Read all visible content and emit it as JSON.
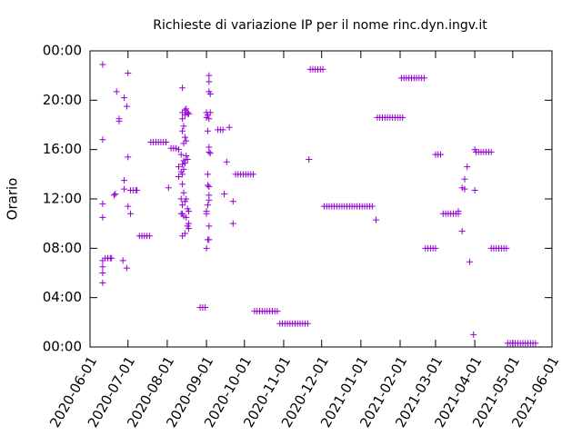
{
  "chart_data": {
    "type": "scatter",
    "title": "Richieste di variazione IP per il nome rinc.dyn.ingv.it",
    "y_label": "Orario",
    "color": "#9400d3",
    "xlim": [
      "2020-06-01",
      "2021-06-01"
    ],
    "xticks": [
      "2020-06-01",
      "2020-07-01",
      "2020-08-01",
      "2020-09-01",
      "2020-10-01",
      "2020-11-01",
      "2020-12-01",
      "2021-01-01",
      "2021-02-01",
      "2021-03-01",
      "2021-04-01",
      "2021-05-01",
      "2021-06-01"
    ],
    "ylim": [
      0,
      24
    ],
    "yticks": [
      {
        "value": 0,
        "label": "00:00"
      },
      {
        "value": 4,
        "label": "04:00"
      },
      {
        "value": 8,
        "label": "08:00"
      },
      {
        "value": 12,
        "label": "12:00"
      },
      {
        "value": 16,
        "label": "16:00"
      },
      {
        "value": 20,
        "label": "20:00"
      },
      {
        "value": 24,
        "label": "00:00"
      }
    ],
    "x": [
      "2020-06-11",
      "2020-06-11",
      "2020-06-11",
      "2020-06-11",
      "2020-06-11",
      "2020-06-11",
      "2020-06-11",
      "2020-06-11",
      "2020-06-13",
      "2020-06-15",
      "2020-06-17",
      "2020-06-18",
      "2020-06-20",
      "2020-06-21",
      "2020-06-22",
      "2020-06-24",
      "2020-06-24",
      "2020-06-27",
      "2020-06-28",
      "2020-06-28",
      "2020-06-28",
      "2020-06-30",
      "2020-06-30",
      "2020-07-01",
      "2020-07-01",
      "2020-07-01",
      "2020-07-03",
      "2020-07-03",
      "2020-07-05",
      "2020-07-07",
      "2020-07-08",
      "2020-07-10",
      "2020-07-12",
      "2020-07-14",
      "2020-07-16",
      "2020-07-18",
      "2020-07-19",
      "2020-07-21",
      "2020-07-23",
      "2020-07-25",
      "2020-07-27",
      "2020-07-29",
      "2020-07-31",
      "2020-08-02",
      "2020-08-04",
      "2020-08-06",
      "2020-08-08",
      "2020-08-10",
      "2020-08-10",
      "2020-08-10",
      "2020-08-12",
      "2020-08-12",
      "2020-08-12",
      "2020-08-12",
      "2020-08-13",
      "2020-08-13",
      "2020-08-13",
      "2020-08-13",
      "2020-08-13",
      "2020-08-13",
      "2020-08-13",
      "2020-08-13",
      "2020-08-13",
      "2020-08-13",
      "2020-08-14",
      "2020-08-14",
      "2020-08-14",
      "2020-08-14",
      "2020-08-14",
      "2020-08-14",
      "2020-08-15",
      "2020-08-15",
      "2020-08-15",
      "2020-08-15",
      "2020-08-15",
      "2020-08-15",
      "2020-08-16",
      "2020-08-16",
      "2020-08-16",
      "2020-08-16",
      "2020-08-16",
      "2020-08-17",
      "2020-08-17",
      "2020-08-17",
      "2020-08-17",
      "2020-08-17",
      "2020-08-18",
      "2020-08-18",
      "2020-08-18",
      "2020-08-18",
      "2020-08-27",
      "2020-08-29",
      "2020-08-31",
      "2020-09-01",
      "2020-09-01",
      "2020-09-01",
      "2020-09-01",
      "2020-09-01",
      "2020-09-02",
      "2020-09-02",
      "2020-09-02",
      "2020-09-02",
      "2020-09-02",
      "2020-09-02",
      "2020-09-03",
      "2020-09-03",
      "2020-09-03",
      "2020-09-03",
      "2020-09-03",
      "2020-09-03",
      "2020-09-03",
      "2020-09-03",
      "2020-09-03",
      "2020-09-03",
      "2020-09-03",
      "2020-09-04",
      "2020-09-04",
      "2020-09-04",
      "2020-09-10",
      "2020-09-12",
      "2020-09-14",
      "2020-09-15",
      "2020-09-17",
      "2020-09-19",
      "2020-09-22",
      "2020-09-22",
      "2020-09-24",
      "2020-09-26",
      "2020-09-28",
      "2020-09-30",
      "2020-10-02",
      "2020-10-04",
      "2020-10-06",
      "2020-10-08",
      "2020-10-09",
      "2020-10-11",
      "2020-10-13",
      "2020-10-15",
      "2020-10-17",
      "2020-10-19",
      "2020-10-21",
      "2020-10-23",
      "2020-10-25",
      "2020-10-27",
      "2020-10-29",
      "2020-10-31",
      "2020-11-02",
      "2020-11-04",
      "2020-11-06",
      "2020-11-08",
      "2020-11-10",
      "2020-11-12",
      "2020-11-14",
      "2020-11-16",
      "2020-11-18",
      "2020-11-20",
      "2020-11-21",
      "2020-11-22",
      "2020-11-24",
      "2020-11-26",
      "2020-11-28",
      "2020-11-30",
      "2020-12-02",
      "2020-12-03",
      "2020-12-05",
      "2020-12-07",
      "2020-12-09",
      "2020-12-11",
      "2020-12-13",
      "2020-12-15",
      "2020-12-17",
      "2020-12-19",
      "2020-12-21",
      "2020-12-23",
      "2020-12-25",
      "2020-12-27",
      "2020-12-29",
      "2020-12-31",
      "2021-01-02",
      "2021-01-04",
      "2021-01-06",
      "2021-01-08",
      "2021-01-10",
      "2021-01-13",
      "2021-01-14",
      "2021-01-16",
      "2021-01-18",
      "2021-01-20",
      "2021-01-22",
      "2021-01-24",
      "2021-01-26",
      "2021-01-28",
      "2021-01-30",
      "2021-02-01",
      "2021-02-03",
      "2021-02-02",
      "2021-02-04",
      "2021-02-06",
      "2021-02-08",
      "2021-02-10",
      "2021-02-12",
      "2021-02-14",
      "2021-02-16",
      "2021-02-18",
      "2021-02-20",
      "2021-02-21",
      "2021-02-23",
      "2021-02-25",
      "2021-02-27",
      "2021-03-01",
      "2021-03-01",
      "2021-03-03",
      "2021-03-05",
      "2021-03-07",
      "2021-03-09",
      "2021-03-11",
      "2021-03-13",
      "2021-03-15",
      "2021-03-17",
      "2021-03-19",
      "2021-03-19",
      "2021-03-22",
      "2021-03-22",
      "2021-03-24",
      "2021-03-24",
      "2021-03-26",
      "2021-03-28",
      "2021-03-31",
      "2021-04-01",
      "2021-04-01",
      "2021-04-02",
      "2021-04-04",
      "2021-04-06",
      "2021-04-08",
      "2021-04-10",
      "2021-04-12",
      "2021-04-14",
      "2021-04-14",
      "2021-04-16",
      "2021-04-18",
      "2021-04-20",
      "2021-04-22",
      "2021-04-24",
      "2021-04-26",
      "2021-04-27",
      "2021-04-29",
      "2021-05-01",
      "2021-05-03",
      "2021-05-05",
      "2021-05-07",
      "2021-05-09",
      "2021-05-11",
      "2021-05-13",
      "2021-05-15",
      "2021-05-17",
      "2021-05-19"
    ],
    "values": [
      22.9,
      16.8,
      11.6,
      10.5,
      7.0,
      6.5,
      6.0,
      5.2,
      7.2,
      7.2,
      7.2,
      7.2,
      12.3,
      12.4,
      20.7,
      18.5,
      18.3,
      7.0,
      20.2,
      13.5,
      12.8,
      19.5,
      6.4,
      22.2,
      15.4,
      11.4,
      10.8,
      12.7,
      12.7,
      12.7,
      12.7,
      9.0,
      9.0,
      9.0,
      9.0,
      9.0,
      16.6,
      16.6,
      16.6,
      16.6,
      16.6,
      16.6,
      16.6,
      12.9,
      16.1,
      16.1,
      16.1,
      14.6,
      13.8,
      16.0,
      15.6,
      14.2,
      12.0,
      10.8,
      17.5,
      18.5,
      19.0,
      21.0,
      14.8,
      14.0,
      13.2,
      10.8,
      9.0,
      11.5,
      17.9,
      16.5,
      15.1,
      14.4,
      12.5,
      10.6,
      19.2,
      18.8,
      17.0,
      14.9,
      11.8,
      9.2,
      19.3,
      16.7,
      15.5,
      12.0,
      10.5,
      19.0,
      18.9,
      15.2,
      11.2,
      9.8,
      18.9,
      10.0,
      9.6,
      11.0,
      3.2,
      3.2,
      3.2,
      19.0,
      18.6,
      11.0,
      10.8,
      8.0,
      18.8,
      17.5,
      14.0,
      13.1,
      11.5,
      8.7,
      22.0,
      21.5,
      20.7,
      18.5,
      16.2,
      15.8,
      13.0,
      12.3,
      11.9,
      9.8,
      8.7,
      20.5,
      19.0,
      15.7,
      17.6,
      17.6,
      17.6,
      12.4,
      15.0,
      17.8,
      11.8,
      10.0,
      14.0,
      14.0,
      14.0,
      14.0,
      14.0,
      14.0,
      14.0,
      14.0,
      2.9,
      2.9,
      2.9,
      2.9,
      2.9,
      2.9,
      2.9,
      2.9,
      2.9,
      2.9,
      1.9,
      1.9,
      1.9,
      1.9,
      1.9,
      1.9,
      1.9,
      1.9,
      1.9,
      1.9,
      1.9,
      1.9,
      15.2,
      22.5,
      22.5,
      22.5,
      22.5,
      22.5,
      22.5,
      11.4,
      11.4,
      11.4,
      11.4,
      11.4,
      11.4,
      11.4,
      11.4,
      11.4,
      11.4,
      11.4,
      11.4,
      11.4,
      11.4,
      11.4,
      11.4,
      11.4,
      11.4,
      11.4,
      11.4,
      10.3,
      18.6,
      18.6,
      18.6,
      18.6,
      18.6,
      18.6,
      18.6,
      18.6,
      18.6,
      18.6,
      18.6,
      21.8,
      21.8,
      21.8,
      21.8,
      21.8,
      21.8,
      21.8,
      21.8,
      21.8,
      21.8,
      8.0,
      8.0,
      8.0,
      8.0,
      8.0,
      15.6,
      15.6,
      15.6,
      10.8,
      10.8,
      10.8,
      10.8,
      10.8,
      10.8,
      10.8,
      11.0,
      9.4,
      12.9,
      12.8,
      13.6,
      14.6,
      6.9,
      1.0,
      12.7,
      16.0,
      15.8,
      15.8,
      15.8,
      15.8,
      15.8,
      15.8,
      15.8,
      8.0,
      8.0,
      8.0,
      8.0,
      8.0,
      8.0,
      8.0,
      0.3,
      0.3,
      0.3,
      0.3,
      0.3,
      0.3,
      0.3,
      0.3,
      0.3,
      0.3,
      0.3,
      0.3
    ]
  }
}
